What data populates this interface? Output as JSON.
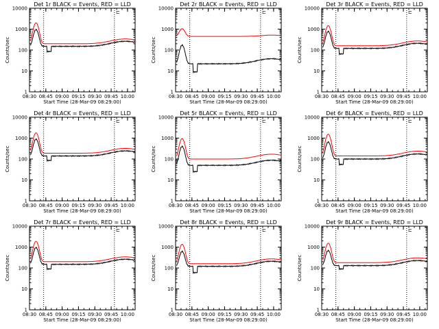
{
  "colors": {
    "events": "#000000",
    "lld": "#ff0000",
    "background": "#ffffff",
    "axes": "#000000"
  },
  "shared": {
    "xlabel": "Start Time (28-Mar-09 08:29:00)",
    "ylabel": "Counts/sec",
    "xtick_labels": [
      "08:30",
      "08:45",
      "09:00",
      "09:15",
      "09:30",
      "09:45",
      "10:00"
    ],
    "ytick_labels": [
      "1",
      "10",
      "100",
      "1000",
      "10000"
    ]
  },
  "chart_data": [
    {
      "type": "line",
      "title": "Det 1r  BLACK = Events, RED = LLD",
      "yscale": "log",
      "ylim": [
        1,
        10000
      ],
      "xlim": [
        "08:30",
        "10:07"
      ],
      "xlabel": "Start Time (28-Mar-09 08:29:00)",
      "ylabel": "Counts/sec",
      "grid": false,
      "vlines": [
        "08:43",
        "09:48"
      ],
      "annotation": "⊏",
      "events_base": 150,
      "events_peak": 800,
      "events_dip": 85,
      "lld_base": 200,
      "lld_peak": 1800,
      "lld_flat": false
    },
    {
      "type": "line",
      "title": "Det 2r  BLACK = Events, RED = LLD",
      "yscale": "log",
      "ylim": [
        1,
        10000
      ],
      "xlim": [
        "08:30",
        "10:07"
      ],
      "xlabel": "Start Time (28-Mar-09 08:29:00)",
      "ylabel": "Counts/sec",
      "grid": false,
      "vlines": [
        "08:43",
        "09:48"
      ],
      "annotation": "⊏",
      "events_base": 22,
      "events_peak": 150,
      "events_dip": 9,
      "lld_base": 450,
      "lld_peak": 1050,
      "lld_flat": true
    },
    {
      "type": "line",
      "title": "Det 3r  BLACK = Events, RED = LLD",
      "yscale": "log",
      "ylim": [
        1,
        10000
      ],
      "xlim": [
        "08:30",
        "10:07"
      ],
      "xlabel": "Start Time (28-Mar-09 08:29:00)",
      "ylabel": "Counts/sec",
      "grid": false,
      "vlines": [
        "08:43",
        "09:48"
      ],
      "annotation": "⊏",
      "events_base": 120,
      "events_peak": 650,
      "events_dip": 65,
      "lld_base": 160,
      "lld_peak": 1300,
      "lld_flat": false
    },
    {
      "type": "line",
      "title": "Det 4r  BLACK = Events, RED = LLD",
      "yscale": "log",
      "ylim": [
        1,
        10000
      ],
      "xlim": [
        "08:30",
        "10:07"
      ],
      "xlabel": "Start Time (28-Mar-09 08:29:00)",
      "ylabel": "Counts/sec",
      "grid": false,
      "vlines": [
        "08:43",
        "09:48"
      ],
      "annotation": "⊏",
      "events_base": 140,
      "events_peak": 750,
      "events_dip": 85,
      "lld_base": 190,
      "lld_peak": 1600,
      "lld_flat": false
    },
    {
      "type": "line",
      "title": "Det 5r  BLACK = Events, RED = LLD",
      "yscale": "log",
      "ylim": [
        1,
        10000
      ],
      "xlim": [
        "08:30",
        "10:07"
      ],
      "xlabel": "Start Time (28-Mar-09 08:29:00)",
      "ylabel": "Counts/sec",
      "grid": false,
      "vlines": [
        "08:43",
        "09:48"
      ],
      "annotation": "⊏",
      "events_base": 50,
      "events_peak": 350,
      "events_dip": 25,
      "lld_base": 100,
      "lld_peak": 850,
      "lld_flat": false
    },
    {
      "type": "line",
      "title": "Det 6r  BLACK = Events, RED = LLD",
      "yscale": "log",
      "ylim": [
        1,
        10000
      ],
      "xlim": [
        "08:30",
        "10:07"
      ],
      "xlabel": "Start Time (28-Mar-09 08:29:00)",
      "ylabel": "Counts/sec",
      "grid": false,
      "vlines": [
        "08:43",
        "09:48"
      ],
      "annotation": "⊏",
      "events_base": 100,
      "events_peak": 550,
      "events_dip": 55,
      "lld_base": 140,
      "lld_peak": 1400,
      "lld_flat": false
    },
    {
      "type": "line",
      "title": "Det 7r  BLACK = Events, RED = LLD",
      "yscale": "log",
      "ylim": [
        1,
        10000
      ],
      "xlim": [
        "08:30",
        "10:07"
      ],
      "xlabel": "Start Time (28-Mar-09 08:29:00)",
      "ylabel": "Counts/sec",
      "grid": false,
      "vlines": [
        "08:43",
        "09:48"
      ],
      "annotation": "⊏",
      "events_base": 150,
      "events_peak": 800,
      "events_dip": 90,
      "lld_base": 200,
      "lld_peak": 1700,
      "lld_flat": false
    },
    {
      "type": "line",
      "title": "Det 8r  BLACK = Events, RED = LLD",
      "yscale": "log",
      "ylim": [
        1,
        10000
      ],
      "xlim": [
        "08:30",
        "10:07"
      ],
      "xlabel": "Start Time (28-Mar-09 08:29:00)",
      "ylabel": "Counts/sec",
      "grid": false,
      "vlines": [
        "08:43",
        "09:48"
      ],
      "annotation": "⊏",
      "events_base": 120,
      "events_peak": 500,
      "events_dip": 60,
      "lld_base": 160,
      "lld_peak": 1200,
      "lld_flat": false
    },
    {
      "type": "line",
      "title": "Det 9r  BLACK = Events, RED = LLD",
      "yscale": "log",
      "ylim": [
        1,
        10000
      ],
      "xlim": [
        "08:30",
        "10:07"
      ],
      "xlabel": "Start Time (28-Mar-09 08:29:00)",
      "ylabel": "Counts/sec",
      "grid": false,
      "vlines": [
        "08:43",
        "09:48"
      ],
      "annotation": "⊏",
      "events_base": 130,
      "events_peak": 550,
      "events_dip": 90,
      "lld_base": 180,
      "lld_peak": 1350,
      "lld_flat": false
    }
  ]
}
